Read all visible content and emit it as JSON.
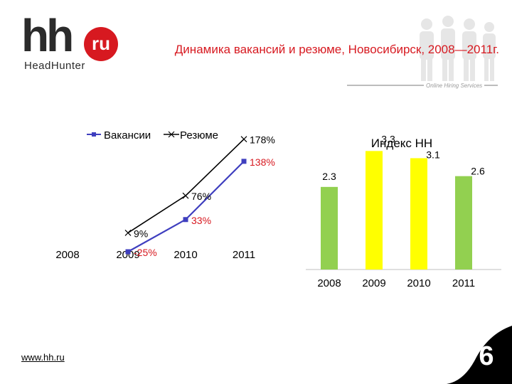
{
  "logo": {
    "hh": "hh",
    "ru": "ru",
    "name": "HeadHunter"
  },
  "header": {
    "title": "Динамика вакансий и резюме, Новосибирск, 2008—2011г.",
    "tagline": "Online Hiring Services"
  },
  "footer": {
    "url": "www.hh.ru",
    "page_number": "6"
  },
  "colors": {
    "brand_red": "#d71920",
    "vacancy_series": "#3f3fbf",
    "resume_series": "#000000",
    "bar_green": "#92d050",
    "bar_yellow": "#ffff00"
  },
  "chart_data": [
    {
      "type": "line",
      "x": [
        "2008",
        "2009",
        "2010",
        "2011"
      ],
      "series": [
        {
          "name": "Вакансии",
          "values": [
            null,
            -25,
            33,
            138
          ],
          "labels": [
            "",
            "-25%",
            "33%",
            "138%"
          ]
        },
        {
          "name": "Резюме",
          "values": [
            null,
            9,
            76,
            178
          ],
          "labels": [
            "",
            "9%",
            "76%",
            "178%"
          ]
        }
      ],
      "legend": "top"
    },
    {
      "type": "bar",
      "title": "Индекс HH",
      "categories": [
        "2008",
        "2009",
        "2010",
        "2011"
      ],
      "values": [
        2.3,
        3.3,
        3.1,
        2.6
      ],
      "labels": [
        "2.3",
        "3.3",
        "3.1",
        "2.6"
      ],
      "bar_colors": [
        "#92d050",
        "#ffff00",
        "#ffff00",
        "#92d050"
      ]
    }
  ]
}
